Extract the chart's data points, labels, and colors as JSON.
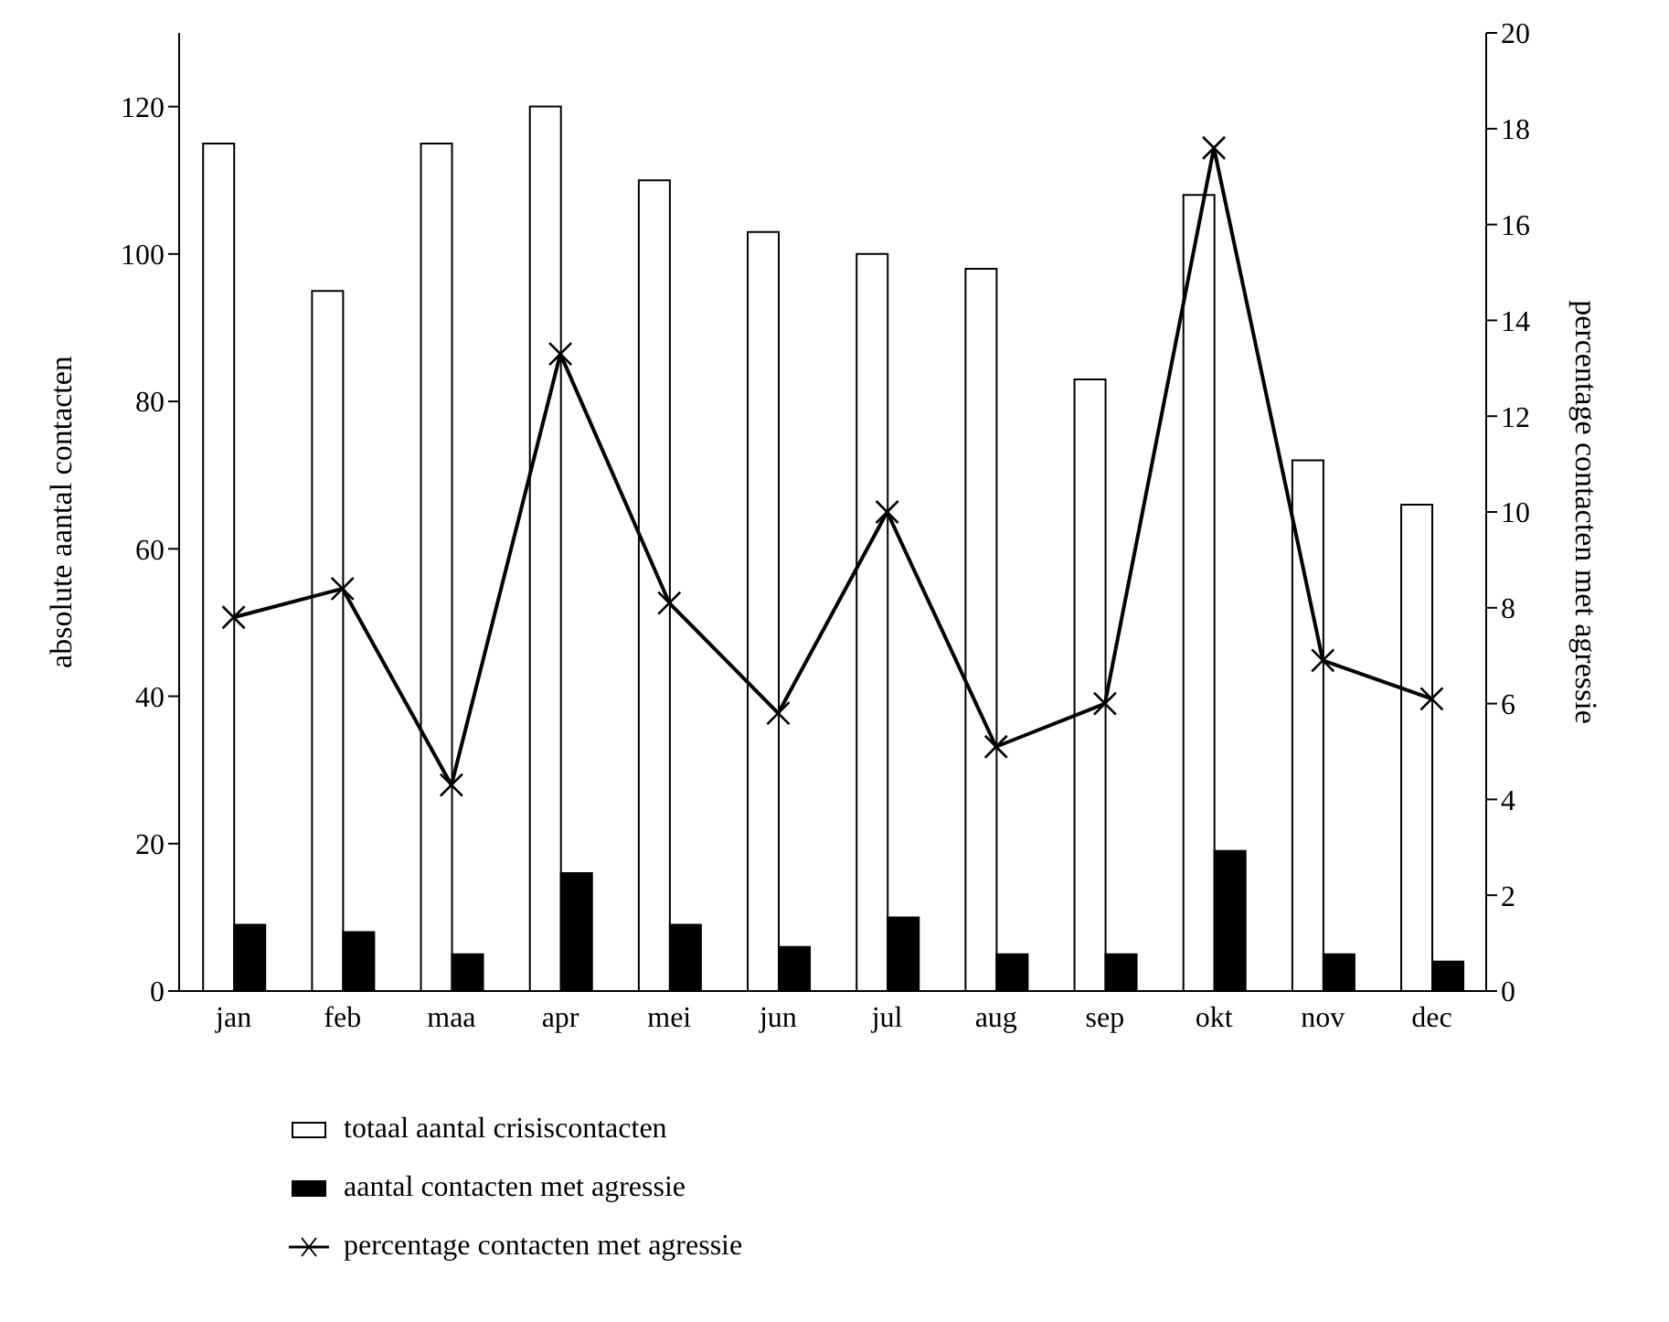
{
  "chart_data": {
    "type": "bar",
    "ylabel": "absolute aantal contacten",
    "y2label": "percentage contacten met agressie",
    "categories": [
      "jan",
      "feb",
      "maa",
      "apr",
      "mei",
      "jun",
      "jul",
      "aug",
      "sep",
      "okt",
      "nov",
      "dec"
    ],
    "series": [
      {
        "name": "totaal aantal crisiscontacten",
        "color": "#ffffff",
        "values": [
          115,
          95,
          115,
          120,
          110,
          103,
          100,
          98,
          83,
          108,
          72,
          66
        ]
      },
      {
        "name": "aantal contacten met agressie",
        "color": "#000000",
        "values": [
          9,
          8,
          5,
          16,
          9,
          6,
          10,
          5,
          5,
          19,
          5,
          4
        ]
      },
      {
        "name": "percentage contacten met agressie",
        "type": "line",
        "axis": "y2",
        "color": "#000000",
        "marker": "cross",
        "values": [
          7.8,
          8.4,
          4.3,
          13.3,
          8.1,
          5.8,
          10.0,
          5.1,
          6.0,
          17.6,
          6.9,
          6.1
        ]
      }
    ],
    "ylim": [
      0,
      130
    ],
    "yticks": [
      0,
      20,
      40,
      60,
      80,
      100,
      120
    ],
    "y2lim": [
      0,
      20
    ],
    "y2ticks": [
      0,
      2,
      4,
      6,
      8,
      10,
      12,
      14,
      16,
      18,
      20
    ],
    "legend": "bottom"
  }
}
